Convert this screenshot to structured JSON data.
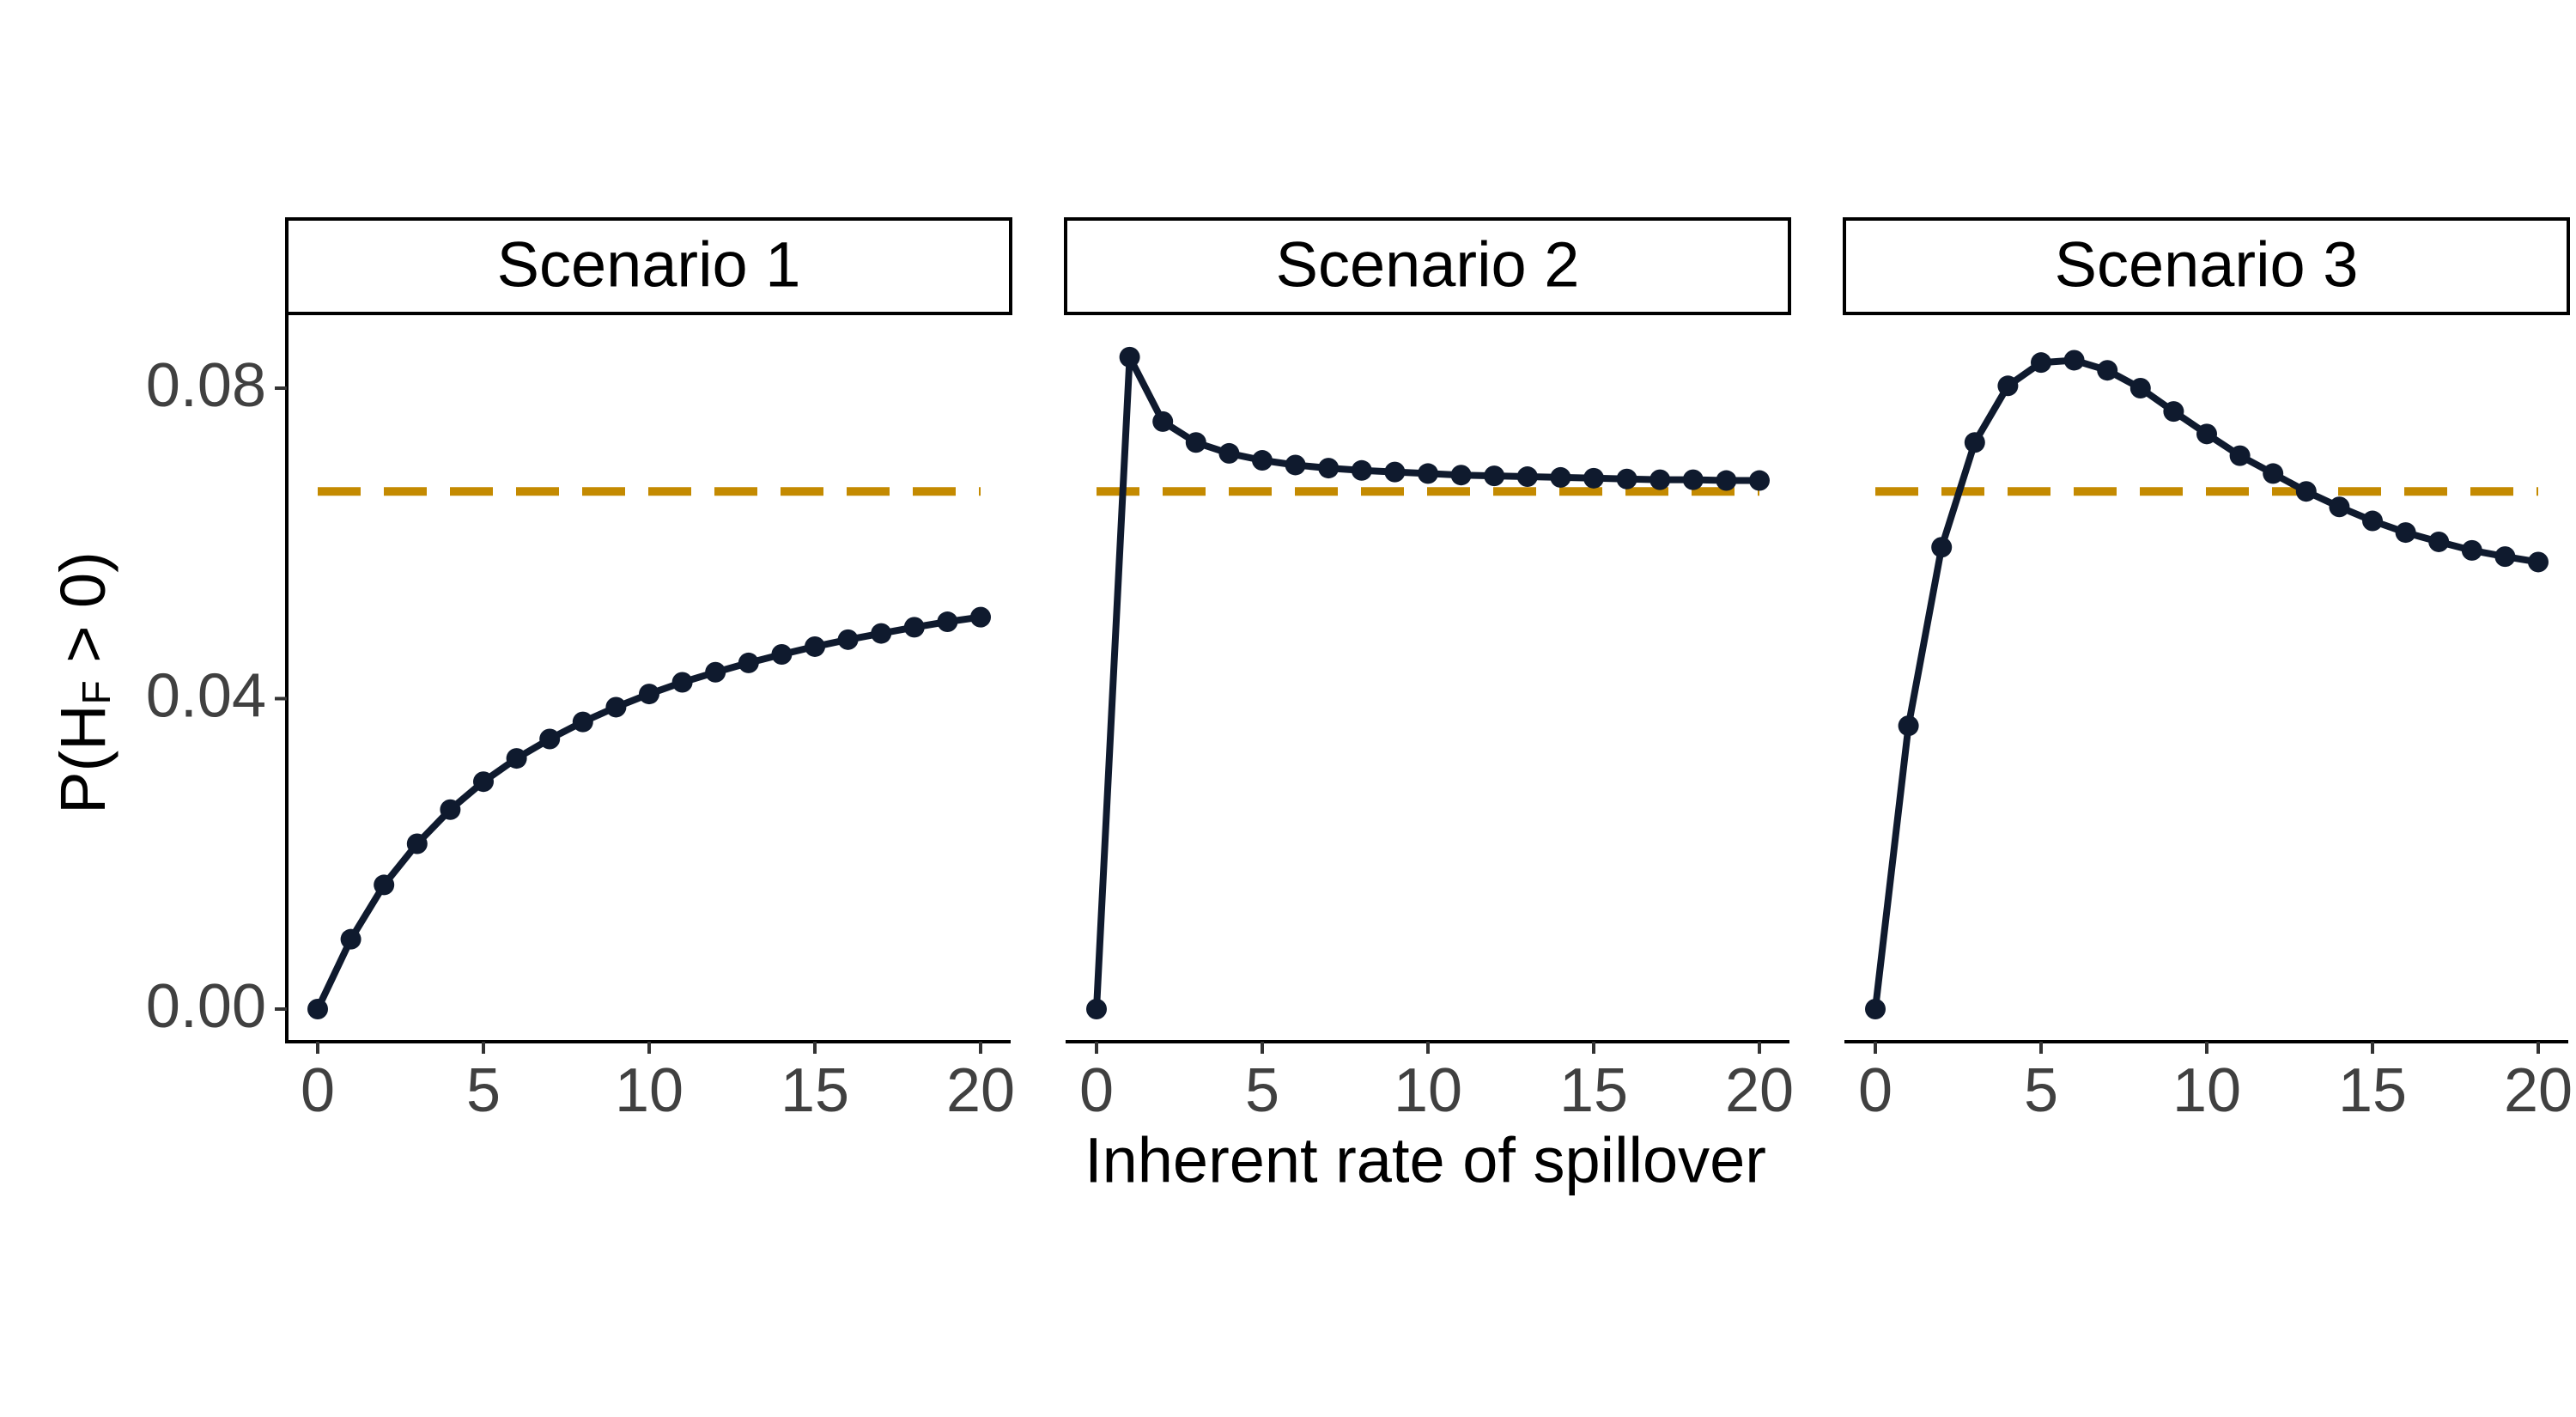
{
  "chart_data": {
    "type": "line",
    "xlabel": "Inherent rate of spillover",
    "ylabel": {
      "prefix": "P(H",
      "subscript": "F",
      "suffix": " > 0)"
    },
    "xlim": [
      0,
      20
    ],
    "ylim": [
      0,
      0.08
    ],
    "x_ticks": [
      0,
      5,
      10,
      15,
      20
    ],
    "x_tick_labels": [
      "0",
      "5",
      "10",
      "15",
      "20"
    ],
    "y_ticks": [
      0,
      0.04,
      0.08
    ],
    "y_tick_labels": [
      "0.00",
      "0.04",
      "0.08"
    ],
    "grid": false,
    "colors": {
      "line": "#0f1a2e",
      "reference": "#c48a00"
    },
    "reference_value": 0.0667,
    "panels": [
      {
        "title": "Scenario 1",
        "x": [
          0,
          1,
          2,
          3,
          4,
          5,
          6,
          7,
          8,
          9,
          10,
          11,
          12,
          13,
          14,
          15,
          16,
          17,
          18,
          19,
          20
        ],
        "values": [
          0.0,
          0.009,
          0.016,
          0.0213,
          0.0257,
          0.0293,
          0.0323,
          0.0348,
          0.037,
          0.0389,
          0.0406,
          0.0421,
          0.0434,
          0.0446,
          0.0457,
          0.0467,
          0.0476,
          0.0484,
          0.0492,
          0.0499,
          0.0505
        ]
      },
      {
        "title": "Scenario 2",
        "x": [
          0,
          1,
          2,
          3,
          4,
          5,
          6,
          7,
          8,
          9,
          10,
          11,
          12,
          13,
          14,
          15,
          16,
          17,
          18,
          19,
          20
        ],
        "values": [
          0.0,
          0.084,
          0.0757,
          0.073,
          0.0716,
          0.0707,
          0.0701,
          0.0697,
          0.0694,
          0.0692,
          0.069,
          0.0688,
          0.0687,
          0.0686,
          0.0685,
          0.0684,
          0.0683,
          0.0682,
          0.0682,
          0.0681,
          0.0681
        ]
      },
      {
        "title": "Scenario 3",
        "x": [
          0,
          1,
          2,
          3,
          4,
          5,
          6,
          7,
          8,
          9,
          10,
          11,
          12,
          13,
          14,
          15,
          16,
          17,
          18,
          19,
          20
        ],
        "values": [
          0.0,
          0.0365,
          0.0595,
          0.073,
          0.0803,
          0.0833,
          0.0836,
          0.0823,
          0.08,
          0.077,
          0.0741,
          0.0713,
          0.069,
          0.0667,
          0.0647,
          0.0629,
          0.0614,
          0.0602,
          0.0591,
          0.0583,
          0.0576
        ]
      }
    ]
  }
}
